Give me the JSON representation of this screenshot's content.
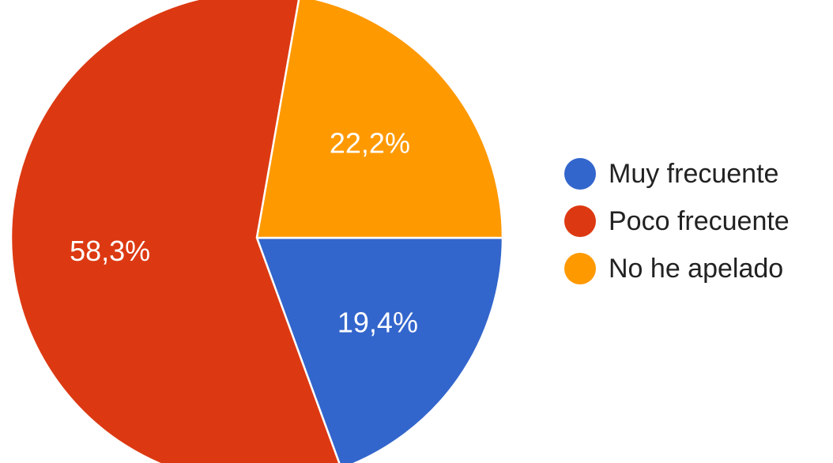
{
  "chart_data": {
    "type": "pie",
    "slices": [
      {
        "name": "Muy frecuente",
        "value": 19.4,
        "label": "19,4%",
        "color": "#3366cc"
      },
      {
        "name": "Poco frecuente",
        "value": 58.3,
        "label": "58,3%",
        "color": "#dc3912"
      },
      {
        "name": "No he apelado",
        "value": 22.2,
        "label": "22,2%",
        "color": "#ff9900"
      }
    ],
    "legend_position": "right"
  }
}
